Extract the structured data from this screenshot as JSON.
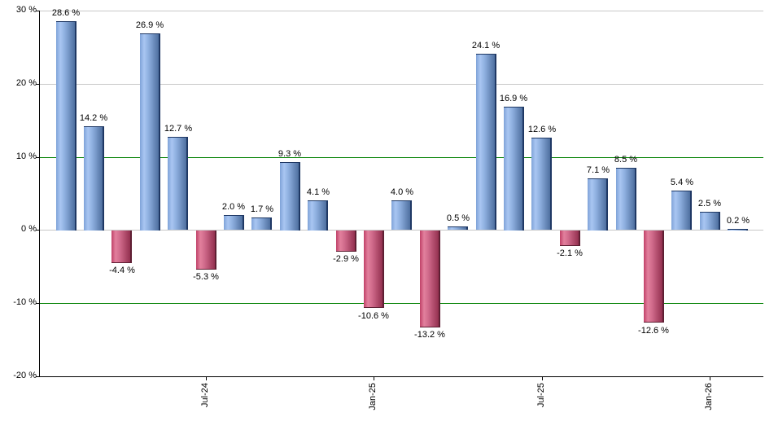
{
  "chart_data": {
    "type": "bar",
    "description": "Monthly percent-return bar chart, positive months blue, negative months red",
    "unit": "%",
    "grid": true,
    "legend_position": "none",
    "ylim": [
      -20,
      30
    ],
    "bars": [
      {
        "value": 28.6,
        "label": "28.6 %",
        "sign": "positive"
      },
      {
        "value": 14.2,
        "label": "14.2 %",
        "sign": "positive"
      },
      {
        "value": -4.4,
        "label": "-4.4 %",
        "sign": "negative"
      },
      {
        "value": 26.9,
        "label": "26.9 %",
        "sign": "positive"
      },
      {
        "value": 12.7,
        "label": "12.7 %",
        "sign": "positive"
      },
      {
        "value": -5.3,
        "label": "-5.3 %",
        "sign": "negative"
      },
      {
        "value": 2.0,
        "label": "2.0 %",
        "sign": "positive"
      },
      {
        "value": 1.7,
        "label": "1.7 %",
        "sign": "positive"
      },
      {
        "value": 9.3,
        "label": "9.3 %",
        "sign": "positive"
      },
      {
        "value": 4.1,
        "label": "4.1 %",
        "sign": "positive"
      },
      {
        "value": -2.9,
        "label": "-2.9 %",
        "sign": "negative"
      },
      {
        "value": -10.6,
        "label": "-10.6 %",
        "sign": "negative"
      },
      {
        "value": 4.0,
        "label": "4.0 %",
        "sign": "positive"
      },
      {
        "value": -13.2,
        "label": "-13.2 %",
        "sign": "negative"
      },
      {
        "value": 0.5,
        "label": "0.5 %",
        "sign": "positive"
      },
      {
        "value": 24.1,
        "label": "24.1 %",
        "sign": "positive"
      },
      {
        "value": 16.9,
        "label": "16.9 %",
        "sign": "positive"
      },
      {
        "value": 12.6,
        "label": "12.6 %",
        "sign": "positive"
      },
      {
        "value": -2.1,
        "label": "-2.1 %",
        "sign": "negative"
      },
      {
        "value": 7.1,
        "label": "7.1 %",
        "sign": "positive"
      },
      {
        "value": 8.5,
        "label": "8.5 %",
        "sign": "positive"
      },
      {
        "value": -12.6,
        "label": "-12.6 %",
        "sign": "negative"
      },
      {
        "value": 5.4,
        "label": "5.4 %",
        "sign": "positive"
      },
      {
        "value": 2.5,
        "label": "2.5 %",
        "sign": "positive"
      },
      {
        "value": 0.2,
        "label": "0.2 %",
        "sign": "positive"
      }
    ],
    "y_axis": {
      "min": -20,
      "max": 30,
      "ticks": [
        {
          "value": 30,
          "label": "30 %",
          "line": "gray"
        },
        {
          "value": 20,
          "label": "20 %",
          "line": "gray"
        },
        {
          "value": 10,
          "label": "10 %",
          "line": "green"
        },
        {
          "value": 0,
          "label": "0 %",
          "line": "gray"
        },
        {
          "value": -10,
          "label": "-10 %",
          "line": "green"
        },
        {
          "value": -20,
          "label": "-20 %",
          "line": "axis"
        }
      ]
    },
    "x_axis": {
      "ticks": [
        {
          "label": "Jul-24",
          "bar_index": 5
        },
        {
          "label": "Jan-25",
          "bar_index": 11
        },
        {
          "label": "Jul-25",
          "bar_index": 17
        },
        {
          "label": "Jan-26",
          "bar_index": 23
        }
      ]
    },
    "colors": {
      "positive_left": "#7FA3D8",
      "positive_light": "#A9C6F2",
      "positive_mid": "#8FB0E0",
      "positive_dark": "#4E6F9F",
      "positive_edge": "#1F3864",
      "negative_left": "#C04168",
      "negative_light": "#E2809D",
      "negative_mid": "#D06A8B",
      "negative_dark": "#93304F",
      "negative_edge": "#5E1F33",
      "grid_gray": "#C8C8C8",
      "grid_green": "#008000",
      "axis": "#000000",
      "text": "#000000",
      "background": "#FFFFFF"
    }
  }
}
